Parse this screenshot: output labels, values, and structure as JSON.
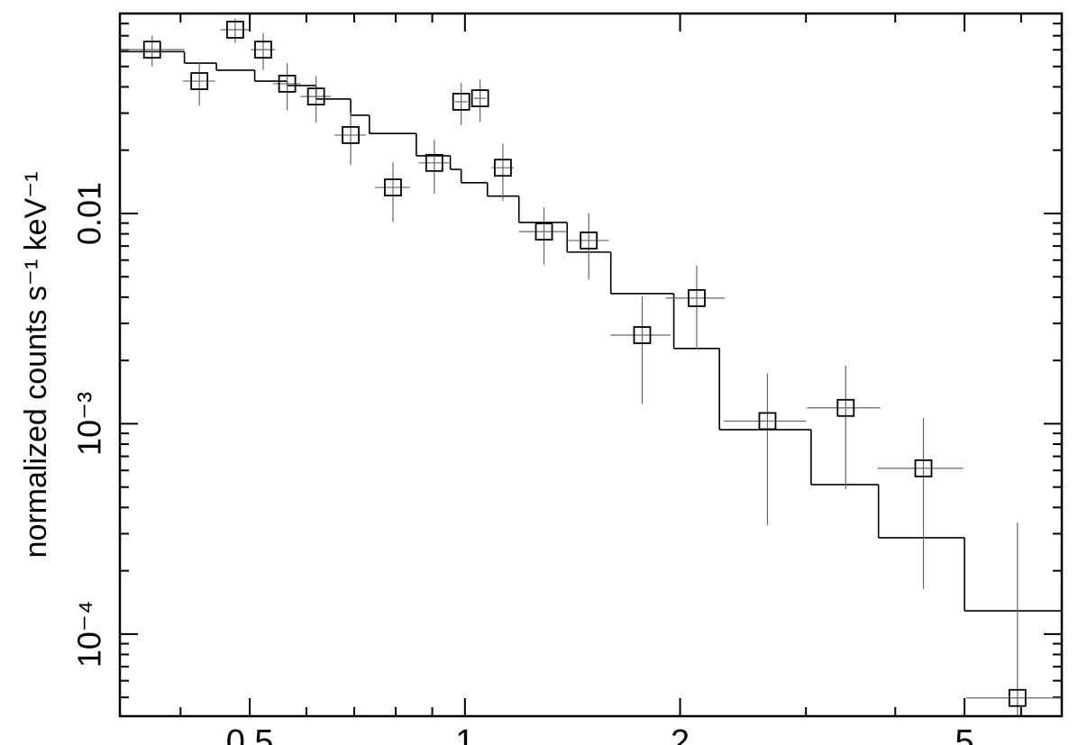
{
  "chart_data": {
    "type": "scatter",
    "y_label": "normalized counts s⁻¹ keV⁻¹",
    "xscale": "log",
    "yscale": "log",
    "xlim": [
      0.329,
      6.84
    ],
    "ylim": [
      4.07e-05,
      0.0893
    ],
    "xticks": [
      0.5,
      1,
      2,
      5
    ],
    "yticks": [
      {
        "value": 0.0001,
        "label": "10⁻⁴"
      },
      {
        "value": 0.001,
        "label": "10⁻³"
      },
      0.01
    ],
    "x_minor_ticks": [
      0.4,
      0.6,
      0.7,
      0.8,
      0.9,
      3,
      4,
      6
    ],
    "y_minor_ticks": [
      5e-05,
      6e-05,
      7e-05,
      8e-05,
      9e-05,
      0.0002,
      0.0003,
      0.0004,
      0.0005,
      0.0006,
      0.0007,
      0.0008,
      0.0009,
      0.002,
      0.003,
      0.004,
      0.005,
      0.006,
      0.007,
      0.008,
      0.009,
      0.02,
      0.03,
      0.04,
      0.05,
      0.06,
      0.07,
      0.08
    ],
    "marker": "square",
    "series": [
      {
        "color": "#000000",
        "x": [
          0.365,
          0.425,
          0.477,
          0.522,
          0.564,
          0.619,
          0.692,
          0.793,
          0.906,
          0.988,
          1.05,
          1.13,
          1.29,
          1.49,
          1.77,
          2.11,
          2.65,
          3.41,
          4.38,
          5.93
        ],
        "x_err": [
          0.04,
          0.022,
          0.022,
          0.02,
          0.025,
          0.03,
          0.035,
          0.045,
          0.045,
          0.02,
          0.02,
          0.04,
          0.1,
          0.1,
          0.17,
          0.2,
          0.35,
          0.4,
          0.6,
          0.9
        ],
        "y": [
          0.0601,
          0.0426,
          0.0748,
          0.0601,
          0.0414,
          0.036,
          0.0236,
          0.0133,
          0.0174,
          0.034,
          0.0353,
          0.0165,
          0.0082,
          0.00744,
          0.00264,
          0.00396,
          0.00103,
          0.00119,
          0.000614,
          4.97e-05
        ],
        "y_err": [
          0.01,
          0.01,
          0.01,
          0.012,
          0.0104,
          0.009,
          0.0066,
          0.0042,
          0.005,
          0.0077,
          0.008,
          0.005,
          0.0025,
          0.0026,
          0.0014,
          0.0017,
          0.0007,
          0.0007,
          0.00045,
          0.00029
        ]
      }
    ],
    "model": {
      "type": "step",
      "color": "#000000",
      "bins": [
        0.329,
        0.405,
        0.449,
        0.508,
        0.564,
        0.619,
        0.692,
        0.735,
        0.855,
        0.954,
        0.988,
        1.075,
        1.19,
        1.39,
        1.6,
        1.96,
        2.27,
        3.05,
        3.79,
        5.0,
        6.84
      ],
      "values": [
        0.0588,
        0.0519,
        0.048,
        0.0426,
        0.0406,
        0.035,
        0.0293,
        0.024,
        0.0188,
        0.0162,
        0.014,
        0.0121,
        0.00906,
        0.00655,
        0.00416,
        0.00228,
        0.000938,
        0.000514,
        0.000287,
        0.000129
      ]
    }
  }
}
